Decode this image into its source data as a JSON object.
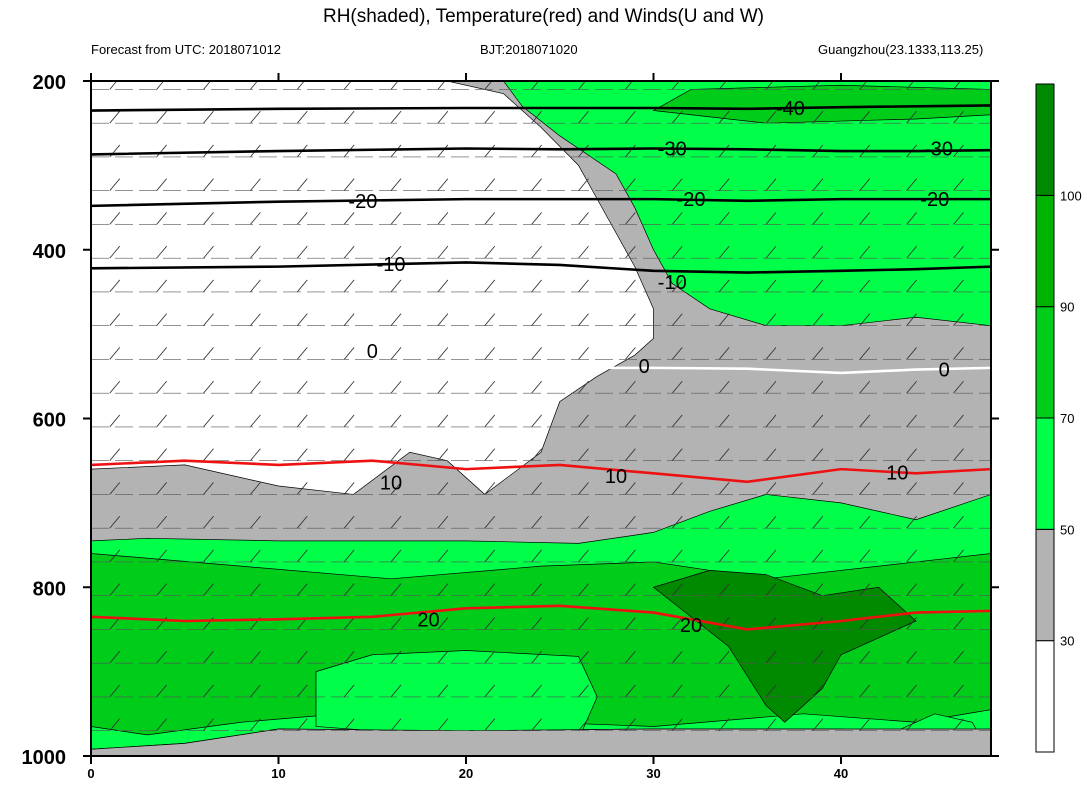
{
  "title": "RH(shaded), Temperature(red) and Winds(U and W)",
  "subtitle_left": "Forecast from UTC: 2018071012",
  "subtitle_center": "BJT:2018071020",
  "subtitle_right": "Guangzhou(23.1333,113.25)",
  "colors": {
    "rh_below_30": "#ffffff",
    "rh_30_50": "#b3b3b3",
    "rh_50_70": "#00ff48",
    "rh_70_90": "#00cc1a",
    "rh_90_100": "#00b300",
    "rh_above_100": "#008a00",
    "temp_positive": "#ee1111",
    "temp_zero": "#ffffff",
    "temp_negative": "#000000"
  },
  "chart_data": {
    "type": "heatmap",
    "title": "RH(shaded), Temperature(red) and Winds(U and W)",
    "xlabel": "",
    "ylabel": "",
    "xlim": [
      0,
      48
    ],
    "ylim": [
      1000,
      200
    ],
    "x_ticks": [
      "0",
      "10",
      "20",
      "30",
      "40"
    ],
    "x_tick_values": [
      0,
      10,
      20,
      30,
      40
    ],
    "y_ticks": [
      "200",
      "400",
      "600",
      "800",
      "1000"
    ],
    "y_tick_values": [
      200,
      400,
      600,
      800,
      1000
    ],
    "colorbar": {
      "levels": [
        "30",
        "50",
        "70",
        "90",
        "100"
      ],
      "level_values": [
        30,
        50,
        70,
        90,
        100
      ],
      "colors": [
        "#ffffff",
        "#b3b3b3",
        "#00ff48",
        "#00cc1a",
        "#00b300",
        "#008a00"
      ]
    },
    "temperature_series": [
      {
        "name": "-40",
        "label": "-40",
        "label_x": 37,
        "x": [
          0,
          10,
          20,
          25,
          30,
          35,
          40,
          44,
          48
        ],
        "y": [
          235,
          233,
          232,
          232,
          232,
          233,
          231,
          230,
          229
        ]
      },
      {
        "name": "-30",
        "label": "-30",
        "label_x": 31,
        "x": [
          0,
          10,
          20,
          25,
          30,
          35,
          40,
          44,
          48
        ],
        "y": [
          287,
          283,
          280,
          281,
          280,
          281,
          283,
          283,
          282
        ]
      },
      {
        "name": "-20",
        "label": "-20",
        "label_x": 32,
        "x": [
          0,
          10,
          20,
          25,
          30,
          35,
          40,
          44,
          48
        ],
        "y": [
          348,
          343,
          340,
          340,
          340,
          342,
          340,
          340,
          340
        ]
      },
      {
        "name": "-10",
        "label": "-10",
        "label_x": 31,
        "x": [
          0,
          10,
          20,
          25,
          30,
          35,
          40,
          44,
          48
        ],
        "y": [
          422,
          420,
          415,
          418,
          425,
          427,
          425,
          423,
          420
        ]
      },
      {
        "name": "0",
        "label": "0",
        "label_x": 29,
        "x": [
          0,
          10,
          20,
          25,
          30,
          35,
          40,
          44,
          48
        ],
        "y": [
          540,
          540,
          540,
          540,
          540,
          541,
          546,
          542,
          540
        ]
      },
      {
        "name": "10",
        "label": "10",
        "label_x": 28,
        "x": [
          0,
          5,
          10,
          15,
          20,
          25,
          30,
          35,
          40,
          44,
          48
        ],
        "y": [
          655,
          650,
          655,
          650,
          660,
          655,
          665,
          675,
          660,
          665,
          660
        ]
      },
      {
        "name": "20",
        "label": "20",
        "label_x": 32,
        "x": [
          0,
          5,
          10,
          15,
          20,
          25,
          30,
          35,
          40,
          44,
          48
        ],
        "y": [
          835,
          840,
          838,
          835,
          825,
          822,
          830,
          850,
          840,
          830,
          828
        ]
      }
    ],
    "contour_labels": [
      {
        "text": "-40",
        "x": 37.3,
        "y": 232
      },
      {
        "text": "-30",
        "x": 31,
        "y": 280
      },
      {
        "text": "-30",
        "x": 45.2,
        "y": 280
      },
      {
        "text": "-20",
        "x": 14.5,
        "y": 342
      },
      {
        "text": "-20",
        "x": 32,
        "y": 340
      },
      {
        "text": "-20",
        "x": 45,
        "y": 340
      },
      {
        "text": "-10",
        "x": 16,
        "y": 417
      },
      {
        "text": "-10",
        "x": 31,
        "y": 438
      },
      {
        "text": "0",
        "x": 15,
        "y": 520
      },
      {
        "text": "0",
        "x": 29.5,
        "y": 538
      },
      {
        "text": "0",
        "x": 45.5,
        "y": 542
      },
      {
        "text": "10",
        "x": 16,
        "y": 676
      },
      {
        "text": "10",
        "x": 28,
        "y": 668
      },
      {
        "text": "10",
        "x": 43,
        "y": 664
      },
      {
        "text": "20",
        "x": 18,
        "y": 838
      },
      {
        "text": "20",
        "x": 32,
        "y": 845
      }
    ]
  }
}
